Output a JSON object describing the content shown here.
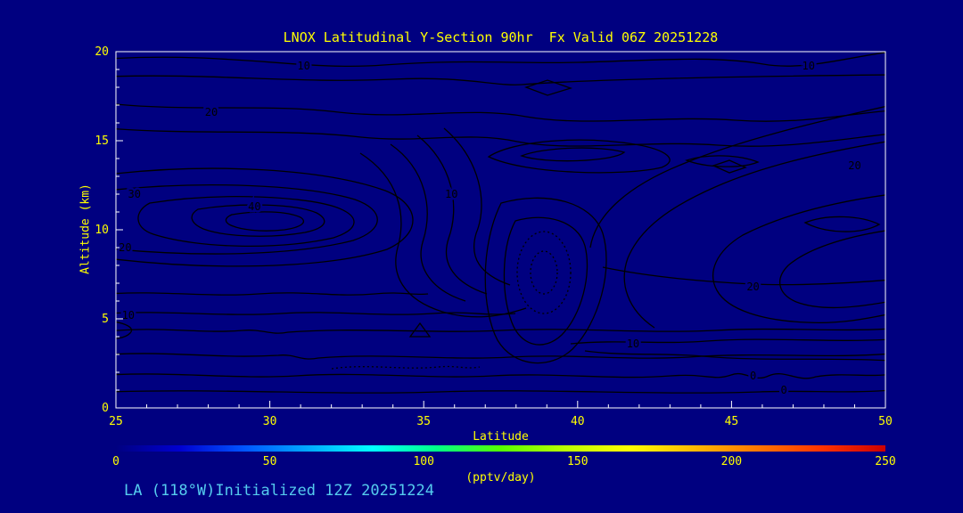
{
  "colors": {
    "background": "#000080",
    "axis_frame": "#FFFFFF",
    "text": "#FFFF00",
    "tick_label": "#FFFF00",
    "contour": "#000000",
    "footer": "#55CCEE"
  },
  "footer": "LA (118°W)Initialized 12Z 20251224",
  "chart_data": {
    "type": "contour",
    "title": "LNOX Latitudinal Y-Section 90hr  Fx Valid 06Z 20251228",
    "xlabel": "Latitude",
    "ylabel": "Altitude (km)",
    "x_range": [
      25,
      50
    ],
    "y_range": [
      0,
      20
    ],
    "x_ticks": [
      25,
      30,
      35,
      40,
      45,
      50
    ],
    "y_ticks": [
      0,
      5,
      10,
      15,
      20
    ],
    "contour_levels": [
      -10,
      0,
      10,
      20,
      30,
      40
    ],
    "negative_contour_style": "dotted",
    "units": "pptv/day",
    "contour_labels": [
      {
        "value": "10",
        "lat": 31.1,
        "alt": 19.2
      },
      {
        "value": "10",
        "lat": 47.5,
        "alt": 19.2
      },
      {
        "value": "20",
        "lat": 28.1,
        "alt": 16.6
      },
      {
        "value": "20",
        "lat": 49.0,
        "alt": 13.6
      },
      {
        "value": "30",
        "lat": 25.6,
        "alt": 12.0
      },
      {
        "value": "40",
        "lat": 29.5,
        "alt": 11.3
      },
      {
        "value": "10",
        "lat": 35.9,
        "alt": 12.0
      },
      {
        "value": "20",
        "lat": 25.3,
        "alt": 9.0
      },
      {
        "value": "10",
        "lat": 25.4,
        "alt": 5.2
      },
      {
        "value": "10",
        "lat": 41.8,
        "alt": 3.6
      },
      {
        "value": "20",
        "lat": 45.7,
        "alt": 6.8
      },
      {
        "value": "0",
        "lat": 45.7,
        "alt": 1.8
      },
      {
        "value": "0",
        "lat": 46.7,
        "alt": 1.0
      }
    ],
    "colorbar": {
      "units": "(pptv/day)",
      "min": 0,
      "max": 250,
      "ticks": [
        0,
        50,
        100,
        150,
        200,
        250
      ],
      "gradient": [
        "#000080",
        "#0000d0",
        "#0055ff",
        "#00aaff",
        "#00ffff",
        "#00ff88",
        "#55ff00",
        "#bbff00",
        "#ffff00",
        "#ffbb00",
        "#ff7700",
        "#ff3300",
        "#cc0000"
      ]
    }
  }
}
